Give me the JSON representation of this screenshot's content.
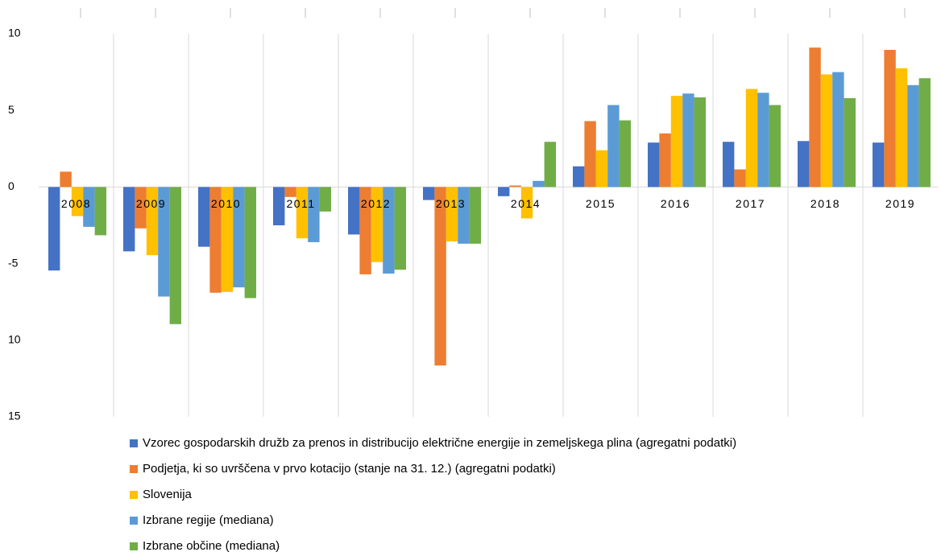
{
  "chart_data": {
    "type": "bar",
    "categories": [
      "2008",
      "2009",
      "2010",
      "2011",
      "2012",
      "2013",
      "2014",
      "2015",
      "2016",
      "2017",
      "2018",
      "2019"
    ],
    "series": [
      {
        "name": "Vzorec gospodarskih družb za prenos in distribucijo električne energije in zemeljskega plina (agregatni podatki)",
        "color": "#4472c4",
        "values": [
          -5.45,
          -4.2,
          -3.9,
          -2.5,
          -3.1,
          -0.85,
          -0.6,
          1.35,
          2.9,
          2.95,
          3.0,
          2.9
        ]
      },
      {
        "name": "Podjetja, ki so uvrščena v prvo kotacijo (stanje na 31. 12.) (agregatni podatki)",
        "color": "#ed7d31",
        "values": [
          1.0,
          -2.7,
          -6.9,
          -0.65,
          -5.7,
          -11.65,
          0.1,
          4.3,
          3.5,
          1.15,
          9.1,
          8.95
        ]
      },
      {
        "name": "Slovenija",
        "color": "#ffc000",
        "values": [
          -1.9,
          -4.45,
          -6.85,
          -3.35,
          -4.9,
          -3.55,
          -2.05,
          2.4,
          5.95,
          6.4,
          7.35,
          7.75
        ]
      },
      {
        "name": "Izbrane regije (mediana)",
        "color": "#5b9bd5",
        "values": [
          -2.6,
          -7.15,
          -6.55,
          -3.6,
          -5.65,
          -3.7,
          0.4,
          5.35,
          6.1,
          6.15,
          7.5,
          6.65
        ]
      },
      {
        "name": "Izbrane občine (mediana)",
        "color": "#70ad47",
        "values": [
          -3.15,
          -8.95,
          -7.25,
          -1.6,
          -5.4,
          -3.7,
          2.95,
          4.35,
          5.85,
          5.35,
          5.8,
          7.1
        ]
      }
    ],
    "ylim": [
      -15,
      10
    ],
    "yticks": [
      10,
      5,
      0,
      -5,
      {
        "value": -10,
        "label": "10",
        "color": "#ff0000"
      },
      {
        "value": -15,
        "label": "15",
        "color": "#ff0000"
      }
    ],
    "grid": false,
    "legend": "bottom"
  }
}
